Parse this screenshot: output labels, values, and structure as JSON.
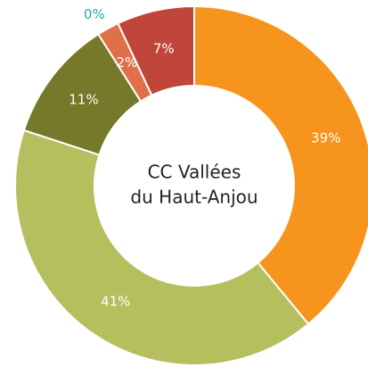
{
  "chart_data": {
    "type": "donut",
    "center_label": [
      "CC Vallées",
      "du Haut-Anjou"
    ],
    "values": [
      39,
      41,
      11,
      2,
      0,
      7
    ],
    "value_labels": [
      "39%",
      "41%",
      "11%",
      "2%",
      "0%",
      "7%"
    ],
    "colors": [
      "#f7941d",
      "#b6bf5e",
      "#76782a",
      "#e0704a",
      "#2aa8a8",
      "#c0463b"
    ]
  }
}
